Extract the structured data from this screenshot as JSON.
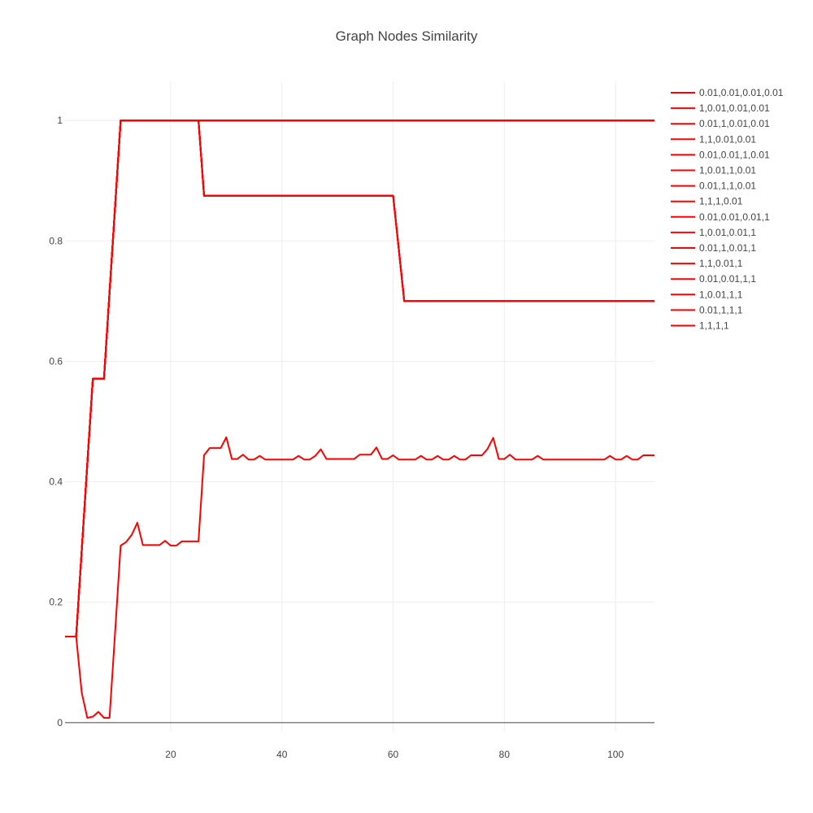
{
  "chart_data": {
    "type": "line",
    "title": "Graph Nodes Similarity",
    "xlabel": "",
    "ylabel": "",
    "xlim": [
      1,
      107
    ],
    "ylim": [
      -0.015,
      1.065
    ],
    "x_ticks": [
      20,
      40,
      60,
      80,
      100
    ],
    "y_ticks": [
      0,
      0.2,
      0.4,
      0.6,
      0.8,
      1
    ],
    "y_tick_labels": [
      "0",
      "0.2",
      "0.4",
      "0.6",
      "0.8",
      "1"
    ],
    "grid": true,
    "legend_position": "top-right",
    "line_color": "#ff0000",
    "series": [
      {
        "name": "0.01,0.01,0.01,0.01",
        "shape": "C"
      },
      {
        "name": "1,0.01,0.01,0.01",
        "shape": "B"
      },
      {
        "name": "0.01,1,0.01,0.01",
        "shape": "A"
      },
      {
        "name": "1,1,0.01,0.01",
        "shape": "B"
      },
      {
        "name": "0.01,0.01,1,0.01",
        "shape": "A"
      },
      {
        "name": "1,0.01,1,0.01",
        "shape": "A"
      },
      {
        "name": "0.01,1,1,0.01",
        "shape": "B"
      },
      {
        "name": "1,1,1,0.01",
        "shape": "A"
      },
      {
        "name": "0.01,0.01,0.01,1",
        "shape": "B"
      },
      {
        "name": "1,0.01,0.01,1",
        "shape": "A"
      },
      {
        "name": "0.01,1,0.01,1",
        "shape": "B"
      },
      {
        "name": "1,1,0.01,1",
        "shape": "A"
      },
      {
        "name": "0.01,0.01,1,1",
        "shape": "B"
      },
      {
        "name": "1,0.01,1,1",
        "shape": "A"
      },
      {
        "name": "0.01,1,1,1",
        "shape": "B"
      },
      {
        "name": "1,1,1,1",
        "shape": "A"
      }
    ],
    "shapes": {
      "A": {
        "x": [
          1,
          3,
          4,
          5,
          6,
          7,
          8,
          9,
          10,
          11,
          25,
          26,
          107
        ],
        "y": [
          0.143,
          0.143,
          0.286,
          0.429,
          0.571,
          0.571,
          0.571,
          0.714,
          0.857,
          1.0,
          1.0,
          1.0,
          1.0
        ]
      },
      "B": {
        "x": [
          1,
          3,
          4,
          5,
          6,
          7,
          8,
          9,
          10,
          11,
          25,
          26,
          60,
          61,
          62,
          107
        ],
        "y": [
          0.143,
          0.143,
          0.286,
          0.429,
          0.571,
          0.571,
          0.571,
          0.714,
          0.857,
          1.0,
          1.0,
          0.875,
          0.875,
          0.788,
          0.7,
          0.7
        ]
      },
      "C": {
        "x": [
          1,
          3,
          4,
          5,
          6,
          7,
          8,
          9,
          10,
          11,
          12,
          13,
          14,
          15,
          16,
          17,
          18,
          19,
          20,
          21,
          22,
          23,
          24,
          25,
          26,
          27,
          28,
          29,
          30,
          31,
          32,
          33,
          34,
          35,
          36,
          37,
          38,
          39,
          40,
          41,
          42,
          43,
          44,
          45,
          46,
          47,
          48,
          49,
          50,
          51,
          52,
          53,
          54,
          55,
          56,
          57,
          58,
          59,
          60,
          61,
          62,
          63,
          64,
          65,
          66,
          67,
          68,
          69,
          70,
          71,
          72,
          73,
          74,
          75,
          76,
          77,
          78,
          79,
          80,
          81,
          82,
          83,
          84,
          85,
          86,
          87,
          88,
          89,
          90,
          91,
          92,
          93,
          94,
          95,
          96,
          97,
          98,
          99,
          100,
          101,
          102,
          103,
          104,
          105,
          106,
          107
        ],
        "y": [
          0.143,
          0.143,
          0.05,
          0.008,
          0.01,
          0.018,
          0.008,
          0.008,
          0.15,
          0.294,
          0.3,
          0.312,
          0.332,
          0.295,
          0.295,
          0.295,
          0.295,
          0.302,
          0.294,
          0.294,
          0.301,
          0.301,
          0.301,
          0.301,
          0.444,
          0.456,
          0.456,
          0.456,
          0.474,
          0.438,
          0.438,
          0.445,
          0.437,
          0.437,
          0.443,
          0.437,
          0.437,
          0.437,
          0.437,
          0.437,
          0.437,
          0.443,
          0.437,
          0.437,
          0.443,
          0.454,
          0.438,
          0.438,
          0.438,
          0.438,
          0.438,
          0.438,
          0.445,
          0.445,
          0.445,
          0.457,
          0.438,
          0.438,
          0.444,
          0.437,
          0.437,
          0.437,
          0.437,
          0.443,
          0.437,
          0.437,
          0.443,
          0.437,
          0.437,
          0.443,
          0.437,
          0.437,
          0.444,
          0.444,
          0.444,
          0.455,
          0.473,
          0.438,
          0.438,
          0.445,
          0.437,
          0.437,
          0.437,
          0.437,
          0.443,
          0.437,
          0.437,
          0.437,
          0.437,
          0.437,
          0.437,
          0.437,
          0.437,
          0.437,
          0.437,
          0.437,
          0.437,
          0.443,
          0.437,
          0.437,
          0.443,
          0.437,
          0.437,
          0.444,
          0.444,
          0.444
        ]
      }
    }
  }
}
